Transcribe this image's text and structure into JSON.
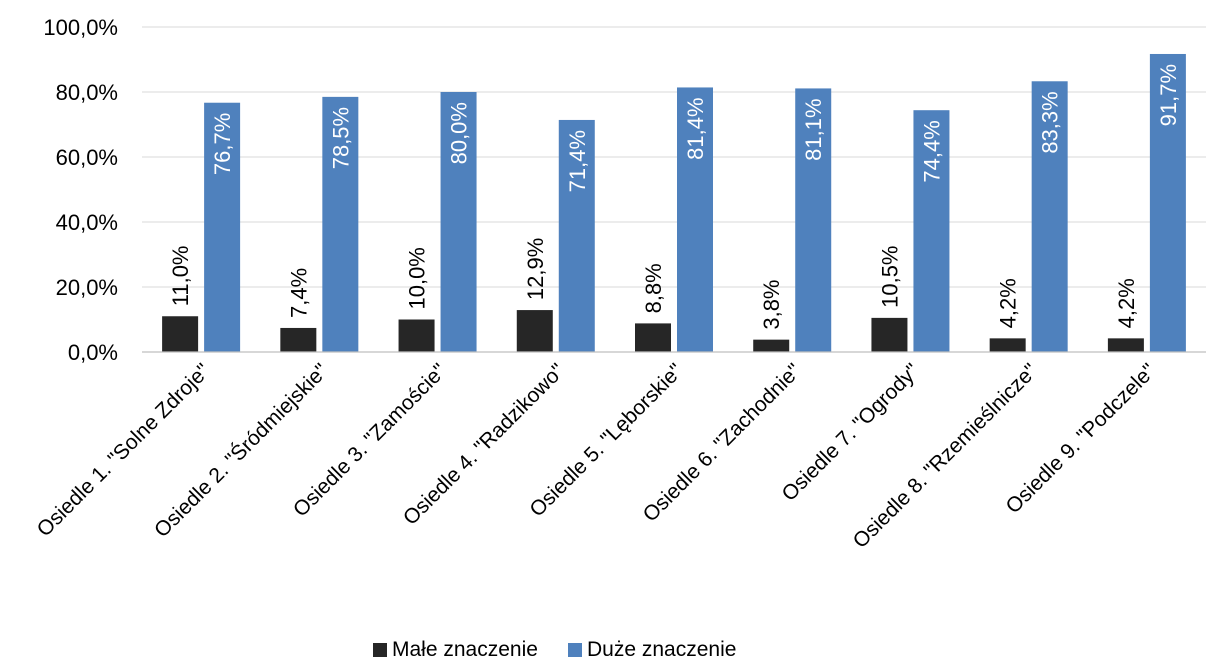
{
  "chart_data": {
    "type": "bar",
    "categories": [
      "Osiedle 1. \"Solne Zdroje\"",
      "Osiedle 2. \"Śródmiejskie\"",
      "Osiedle 3. \"Zamoście\"",
      "Osiedle 4. \"Radzikowo\"",
      "Osiedle 5. \"Lęborskie\"",
      "Osiedle 6. \"Zachodnie\"",
      "Osiedle 7. \"Ogrody\"",
      "Osiedle 8. \"Rzemieślnicze\"",
      "Osiedle 9. \"Podczele\""
    ],
    "series": [
      {
        "name": "Małe znaczenie",
        "color": "#262626",
        "values": [
          11.0,
          7.4,
          10.0,
          12.9,
          8.8,
          3.8,
          10.5,
          4.2,
          4.2
        ],
        "labels": [
          "11,0%",
          "7,4%",
          "10,0%",
          "12,9%",
          "8,8%",
          "3,8%",
          "10,5%",
          "4,2%",
          "4,2%"
        ]
      },
      {
        "name": "Duże znaczenie",
        "color": "#4f81bd",
        "values": [
          76.7,
          78.5,
          80.0,
          71.4,
          81.4,
          81.1,
          74.4,
          83.3,
          91.7
        ],
        "labels": [
          "76,7%",
          "78,5%",
          "80,0%",
          "71,4%",
          "81,4%",
          "81,1%",
          "74,4%",
          "83,3%",
          "91,7%"
        ]
      }
    ],
    "ylim": [
      0,
      100
    ],
    "yticks": [
      0,
      20,
      40,
      60,
      80,
      100
    ],
    "ytick_labels": [
      "0,0%",
      "20,0%",
      "40,0%",
      "60,0%",
      "80,0%",
      "100,0%"
    ],
    "grid": true,
    "legend_position": "bottom"
  }
}
